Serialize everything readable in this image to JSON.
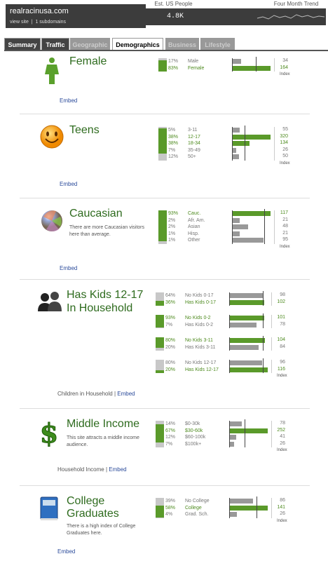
{
  "header": {
    "site": "realracinusa.com",
    "view_site": "view site",
    "subdomains": "1 subdomains",
    "est_label": "Est. US People",
    "est_value": "4.8K",
    "trend_label": "Four Month Trend"
  },
  "tabs": [
    {
      "label": "Summary",
      "state": "dark"
    },
    {
      "label": "Traffic",
      "state": "dark"
    },
    {
      "label": "Geographic",
      "state": "disabled"
    },
    {
      "label": "Demographics",
      "state": "active"
    },
    {
      "label": "Business",
      "state": "disabled"
    },
    {
      "label": "Lifestyle",
      "state": "disabled"
    }
  ],
  "index_label": "Index",
  "sections": [
    {
      "key": "gender",
      "title": "Female",
      "embed": "Embed",
      "rows": [
        {
          "pct": "17%",
          "label": "Male",
          "index": 34,
          "highlight": false
        },
        {
          "pct": "83%",
          "label": "Female",
          "index": 164,
          "highlight": true
        }
      ]
    },
    {
      "key": "age",
      "title": "Teens",
      "embed": "Embed",
      "rows": [
        {
          "pct": "5%",
          "label": "3-11",
          "index": 55,
          "highlight": false
        },
        {
          "pct": "38%",
          "label": "12-17",
          "index": 320,
          "highlight": true
        },
        {
          "pct": "38%",
          "label": "18-34",
          "index": 134,
          "highlight": true
        },
        {
          "pct": "7%",
          "label": "35-49",
          "index": 26,
          "highlight": false
        },
        {
          "pct": "12%",
          "label": "50+",
          "index": 50,
          "highlight": false
        }
      ]
    },
    {
      "key": "ethnicity",
      "title": "Caucasian",
      "desc": "There are more Caucasian visitors here than average.",
      "embed": "Embed",
      "rows": [
        {
          "pct": "93%",
          "label": "Cauc.",
          "index": 117,
          "highlight": true
        },
        {
          "pct": "2%",
          "label": "Afr. Am.",
          "index": 21,
          "highlight": false
        },
        {
          "pct": "2%",
          "label": "Asian",
          "index": 48,
          "highlight": false
        },
        {
          "pct": "1%",
          "label": "Hisp.",
          "index": 21,
          "highlight": false
        },
        {
          "pct": "1%",
          "label": "Other",
          "index": 95,
          "highlight": false
        }
      ]
    },
    {
      "key": "kids",
      "title_line1": "Has Kids 12-17",
      "title_line2": "In Household",
      "footer_text": "Children in Household",
      "embed": "Embed",
      "groups": [
        [
          {
            "pct": "64%",
            "label": "No Kids 0-17",
            "index": 98,
            "highlight": false
          },
          {
            "pct": "36%",
            "label": "Has Kids 0-17",
            "index": 102,
            "highlight": true
          }
        ],
        [
          {
            "pct": "93%",
            "label": "No Kids 0-2",
            "index": 101,
            "highlight": true
          },
          {
            "pct": "7%",
            "label": "Has Kids 0-2",
            "index": 78,
            "highlight": false
          }
        ],
        [
          {
            "pct": "80%",
            "label": "No Kids 3-11",
            "index": 104,
            "highlight": true
          },
          {
            "pct": "20%",
            "label": "Has Kids 3-11",
            "index": 84,
            "highlight": false
          }
        ],
        [
          {
            "pct": "80%",
            "label": "No Kids 12-17",
            "index": 96,
            "highlight": false
          },
          {
            "pct": "20%",
            "label": "Has Kids 12-17",
            "index": 116,
            "highlight": true
          }
        ]
      ]
    },
    {
      "key": "income",
      "title": "Middle Income",
      "desc": "This site attracts a middle income audience.",
      "footer_text": "Household Income",
      "embed": "Embed",
      "rows": [
        {
          "pct": "14%",
          "label": "$0-30k",
          "index": 78,
          "highlight": false
        },
        {
          "pct": "67%",
          "label": "$30-60k",
          "index": 252,
          "highlight": true
        },
        {
          "pct": "12%",
          "label": "$60-100k",
          "index": 41,
          "highlight": false
        },
        {
          "pct": "7%",
          "label": "$100k+",
          "index": 26,
          "highlight": false
        }
      ]
    },
    {
      "key": "education",
      "title_line1": "College",
      "title_line2": "Graduates",
      "desc": "There is a high index of College Graduates here.",
      "embed": "Embed",
      "rows": [
        {
          "pct": "39%",
          "label": "No College",
          "index": 86,
          "highlight": false
        },
        {
          "pct": "58%",
          "label": "College",
          "index": 141,
          "highlight": true
        },
        {
          "pct": "4%",
          "label": "Grad. Sch.",
          "index": 26,
          "highlight": false
        }
      ]
    }
  ],
  "colors": {
    "green": "#5a9a2a",
    "gray": "#999999",
    "title": "#2e6b1e",
    "link": "#2a4a9a"
  }
}
